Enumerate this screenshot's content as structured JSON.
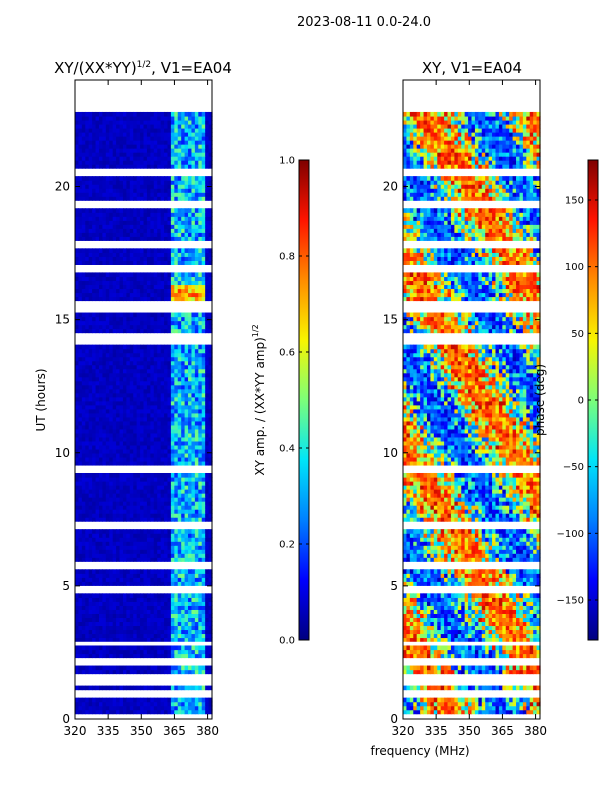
{
  "figure": {
    "suptitle": "2023-08-11 0.0-24.0",
    "xlabel_shared": "frequency (MHz)",
    "cmap_colors": [
      "#00007f",
      "#0000ff",
      "#0080ff",
      "#00e5f8",
      "#7cff79",
      "#f8f500",
      "#ff8c00",
      "#ff1400",
      "#7f0000"
    ]
  },
  "chart_data": [
    {
      "type": "heatmap",
      "title_main": "XY/(XX*YY)",
      "title_exp": "1/2",
      "title_suffix": ", V1=EA04",
      "xlabel": "",
      "ylabel": "UT (hours)",
      "xlim": [
        320,
        382
      ],
      "ylim": [
        0,
        24
      ],
      "xticks": [
        320,
        335,
        350,
        365,
        380
      ],
      "yticks": [
        0,
        5,
        10,
        15,
        20
      ],
      "data_time_range": [
        0.2,
        22.8
      ],
      "colorbar": {
        "label_main": "XY amp. / (XX*YY amp)",
        "label_exp": "1/2",
        "range": [
          0.0,
          1.0
        ],
        "ticks": [
          "0.0",
          "0.2",
          "0.4",
          "0.6",
          "0.8",
          "1.0"
        ],
        "tick_values": [
          0.0,
          0.2,
          0.4,
          0.6,
          0.8,
          1.0
        ]
      },
      "gaps_hours": [
        [
          20.4,
          20.6
        ],
        [
          19.2,
          19.4
        ],
        [
          17.8,
          17.9
        ],
        [
          16.9,
          17.0
        ],
        [
          15.4,
          15.6
        ],
        [
          14.2,
          14.4
        ],
        [
          9.3,
          9.5
        ],
        [
          7.2,
          7.3
        ],
        [
          5.7,
          5.8
        ],
        [
          4.8,
          4.9
        ],
        [
          2.8,
          2.9
        ],
        [
          2.1,
          2.25
        ],
        [
          1.4,
          1.6
        ],
        [
          0.9,
          1.0
        ]
      ]
    },
    {
      "type": "heatmap",
      "title": "XY, V1=EA04",
      "xlabel": "",
      "ylabel": "",
      "xlim": [
        320,
        382
      ],
      "ylim": [
        0,
        24
      ],
      "xticks": [
        320,
        335,
        350,
        365,
        380
      ],
      "yticks": [
        0,
        5,
        10,
        15,
        20
      ],
      "data_time_range": [
        0.2,
        22.8
      ],
      "colorbar": {
        "label": "phase (deg)",
        "range": [
          -180,
          180
        ],
        "ticks": [
          "−150",
          "−100",
          "−50",
          "0",
          "50",
          "100",
          "150"
        ],
        "tick_values": [
          -150,
          -100,
          -50,
          0,
          50,
          100,
          150
        ]
      },
      "gaps_hours": [
        [
          20.4,
          20.6
        ],
        [
          19.2,
          19.4
        ],
        [
          17.8,
          17.9
        ],
        [
          16.9,
          17.0
        ],
        [
          15.4,
          15.6
        ],
        [
          14.2,
          14.4
        ],
        [
          9.3,
          9.5
        ],
        [
          7.2,
          7.3
        ],
        [
          5.7,
          5.8
        ],
        [
          4.8,
          4.9
        ],
        [
          2.8,
          2.9
        ],
        [
          2.1,
          2.25
        ],
        [
          1.4,
          1.6
        ],
        [
          0.9,
          1.0
        ]
      ]
    }
  ]
}
